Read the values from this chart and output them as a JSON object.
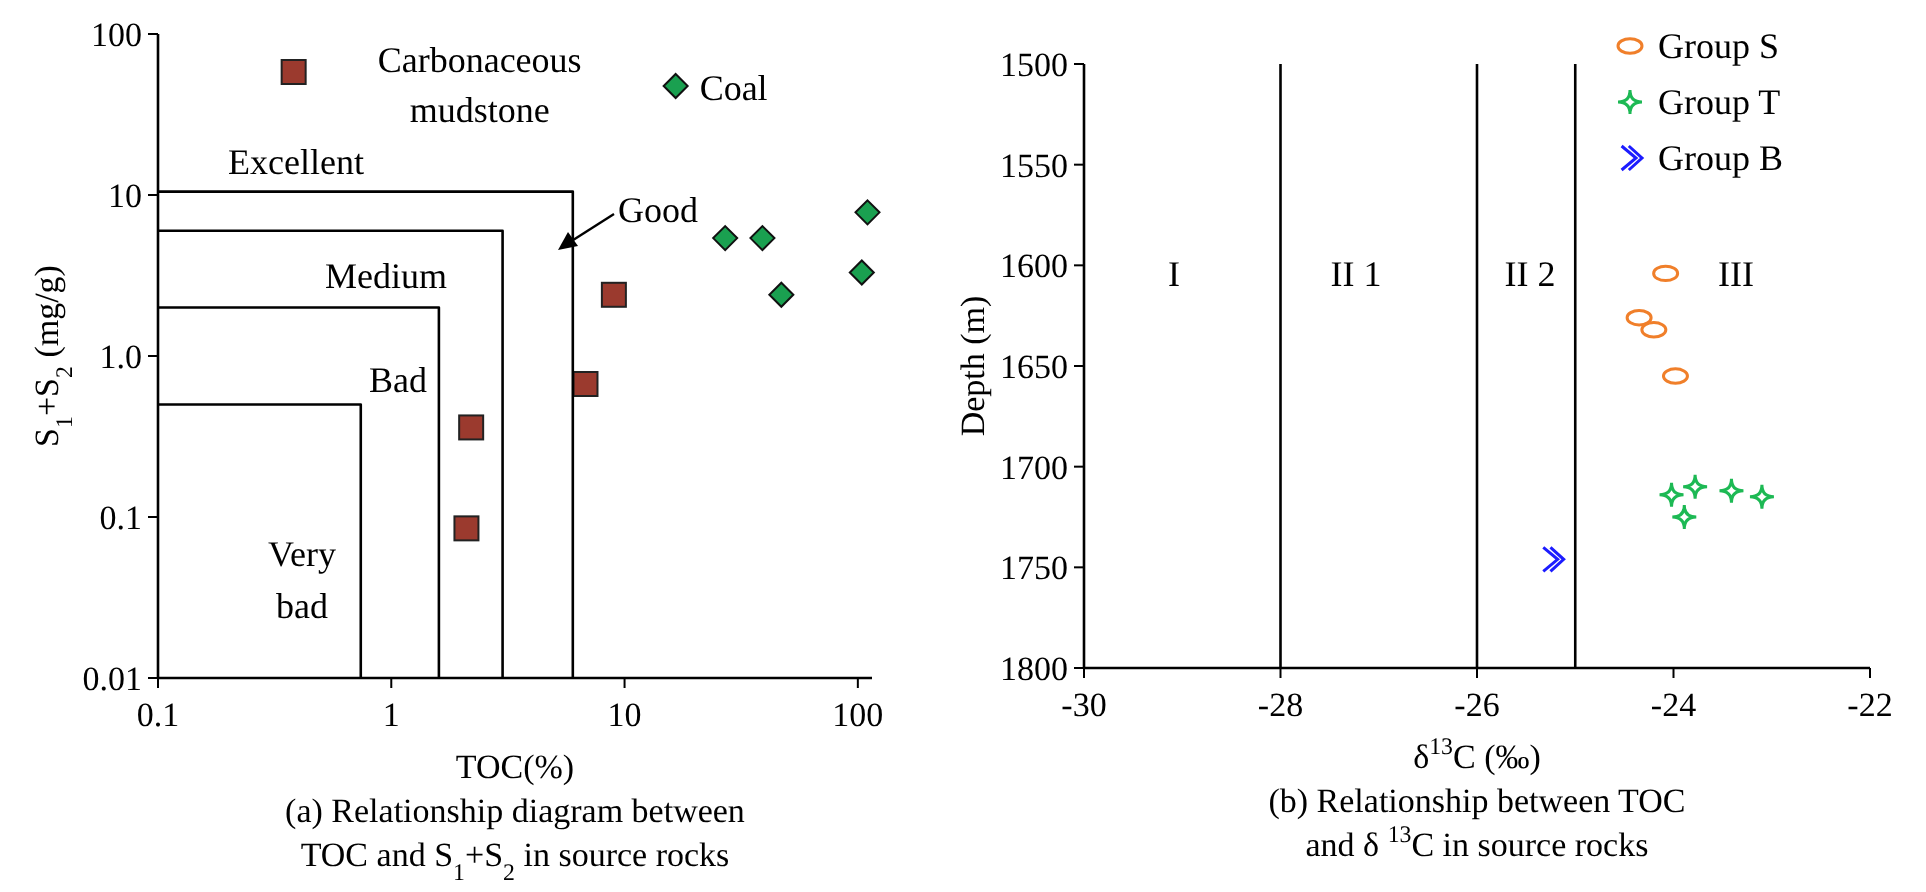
{
  "chart_data": [
    {
      "type": "scatter",
      "title": "(a) Relationship diagram between TOC and S$_{1}$+S$_{2}$ in source rocks",
      "xlabel": "TOC(%)",
      "ylabel": "S$_{1}$+S$_{2}$ (mg/g)",
      "log": "xy",
      "xlim": [
        0.1,
        115
      ],
      "ylim": [
        0.01,
        100
      ],
      "xticks": [
        0.1,
        1,
        10,
        100
      ],
      "yticks": [
        0.01,
        0.1,
        {
          "value": 1,
          "label": "1.0"
        },
        10,
        100
      ],
      "grid": false,
      "legend": "top",
      "series": [
        {
          "name": "Carbonaceous mudstone",
          "color": "#9b3a2e",
          "marker": "square",
          "x": [
            9,
            6.8,
            2.2,
            2.1
          ],
          "values": [
            2.4,
            0.67,
            0.36,
            0.085
          ]
        },
        {
          "name": "Coal",
          "color": "#1aa050",
          "marker": "diamond",
          "x": [
            27,
            39,
            47,
            104,
            110
          ],
          "values": [
            5.4,
            5.4,
            2.4,
            3.3,
            7.8
          ]
        },
        {
          "type": "line",
          "color": "#000000",
          "marker": "none",
          "x": [
            0.1,
            0.74,
            0.74
          ],
          "values": [
            0.5,
            0.5,
            0.01
          ]
        },
        {
          "type": "line",
          "color": "#000000",
          "marker": "none",
          "x": [
            0.1,
            1.6,
            1.6
          ],
          "values": [
            2,
            2,
            0.01
          ]
        },
        {
          "type": "line",
          "color": "#000000",
          "marker": "none",
          "x": [
            0.1,
            3,
            3
          ],
          "values": [
            6,
            6,
            0.01
          ]
        },
        {
          "type": "line",
          "color": "#000000",
          "marker": "none",
          "x": [
            0.1,
            6,
            6
          ],
          "values": [
            10.5,
            10.5,
            0.01
          ]
        }
      ],
      "annotations": [
        "Excellent",
        "Good",
        "Medium",
        "Bad",
        "Very bad"
      ]
    },
    {
      "type": "scatter",
      "title": "(b) Relationship between TOC and δ $^{13}$C in source rocks",
      "xlabel": "δ$^{13}$C (‰)",
      "ylabel": "Depth (m)",
      "xlim": [
        -30,
        -22
      ],
      "ylim": [
        1800,
        1500
      ],
      "xticks": [
        -30,
        -28,
        -26,
        -24,
        -22
      ],
      "yticks": [
        1500,
        1550,
        1600,
        1650,
        1700,
        1750,
        1800
      ],
      "grid": false,
      "legend": "top right",
      "series": [
        {
          "name": "Group S",
          "color": "#f07f2a",
          "marker": "circle",
          "x": [
            -24.08,
            -24.35,
            -24.2,
            -23.98
          ],
          "values": [
            1604,
            1626,
            1632,
            1655
          ]
        },
        {
          "name": "Group T",
          "color": "#1db954",
          "marker": "star",
          "x": [
            -24.02,
            -23.78,
            -23.41,
            -23.1,
            -23.89
          ],
          "values": [
            1714,
            1710,
            1712,
            1715,
            1725
          ]
        },
        {
          "name": "Group B",
          "color": "#1c1cff",
          "x": [
            -25.24
          ],
          "values": [
            1746
          ]
        }
      ],
      "ref_lines": [
        {
          "axis": "x",
          "value": -28,
          "color": "#000000"
        },
        {
          "axis": "x",
          "value": -26,
          "color": "#000000"
        },
        {
          "axis": "x",
          "value": -25,
          "color": "#000000"
        }
      ],
      "annotations": [
        "I",
        "II 1",
        "II 2",
        "III"
      ]
    }
  ]
}
